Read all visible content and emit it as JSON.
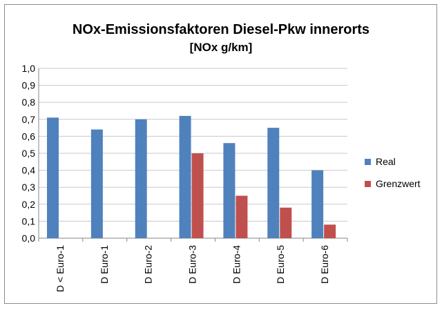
{
  "chart_data": {
    "type": "bar",
    "title": "NOx-Emissionsfaktoren Diesel-Pkw innerorts",
    "subtitle": "[NOx g/km]",
    "xlabel": "",
    "ylabel": "",
    "ylim": [
      0,
      1.0
    ],
    "ytick_step": 0.1,
    "ytick_labels": [
      "0,0",
      "0,1",
      "0,2",
      "0,3",
      "0,4",
      "0,5",
      "0,6",
      "0,7",
      "0,8",
      "0,9",
      "1,0"
    ],
    "grid": true,
    "legend_position": "right",
    "categories": [
      "D < Euro-1",
      "D Euro-1",
      "D Euro-2",
      "D Euro-3",
      "D Euro-4",
      "D Euro-5",
      "D Euro-6"
    ],
    "series": [
      {
        "name": "Real",
        "color": "#4f81bd",
        "values": [
          0.71,
          0.64,
          0.7,
          0.72,
          0.56,
          0.65,
          0.4
        ]
      },
      {
        "name": "Grenzwert",
        "color": "#c0504d",
        "values": [
          null,
          null,
          null,
          0.5,
          0.25,
          0.18,
          0.08
        ]
      }
    ]
  }
}
